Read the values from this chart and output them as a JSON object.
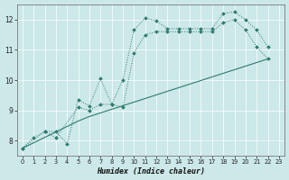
{
  "xlabel": "Humidex (Indice chaleur)",
  "bg_color": "#cce8e8",
  "grid_color": "#b0d0d0",
  "line_color": "#2e7b6e",
  "xlim": [
    -0.5,
    23.5
  ],
  "ylim": [
    7.5,
    12.5
  ],
  "xticks": [
    0,
    1,
    2,
    3,
    4,
    5,
    6,
    7,
    8,
    9,
    10,
    11,
    12,
    13,
    14,
    15,
    16,
    17,
    18,
    19,
    20,
    21,
    22,
    23
  ],
  "yticks": [
    8,
    9,
    10,
    11,
    12
  ],
  "line1_x": [
    0,
    1,
    2,
    3,
    4,
    5,
    6,
    7,
    8,
    9,
    10,
    11,
    12,
    13,
    14,
    15,
    16,
    17,
    18,
    19,
    20,
    21,
    22
  ],
  "line1_y": [
    7.75,
    8.1,
    8.3,
    8.3,
    7.9,
    9.35,
    9.15,
    10.05,
    9.2,
    10.0,
    11.65,
    12.05,
    11.95,
    11.7,
    11.7,
    11.7,
    11.7,
    11.7,
    12.2,
    12.25,
    12.0,
    11.65,
    11.1
  ],
  "line2_x": [
    0,
    2,
    3,
    5,
    6,
    7,
    8,
    9,
    10,
    11,
    12,
    13,
    14,
    15,
    16,
    17,
    18,
    19,
    20,
    21,
    22
  ],
  "line2_y": [
    7.75,
    8.3,
    8.1,
    9.1,
    9.0,
    9.2,
    9.2,
    9.1,
    10.9,
    11.5,
    11.6,
    11.6,
    11.6,
    11.6,
    11.6,
    11.6,
    11.9,
    12.0,
    11.65,
    11.1,
    10.7
  ],
  "line3_x": [
    0,
    5,
    6,
    22
  ],
  "line3_y": [
    7.75,
    8.65,
    8.8,
    10.7
  ]
}
